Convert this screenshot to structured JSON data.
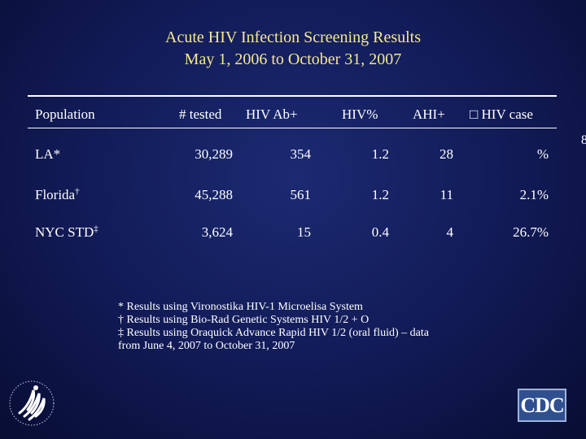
{
  "title": {
    "line1": "Acute HIV Infection Screening Results",
    "line2": "May 1, 2006 to October 31, 2007"
  },
  "table": {
    "headers": {
      "population": "Population",
      "tested": "# tested",
      "hiv_ab": "HIV Ab+",
      "hiv_pct": "HIV%",
      "ahi": "AHI+",
      "hiv_case": "□ HIV case"
    },
    "rows": [
      {
        "population": "LA*",
        "marker": "",
        "tested": "30,289",
        "hiv_ab": "354",
        "hiv_pct": "1.2",
        "ahi": "28",
        "hiv_case": "%"
      },
      {
        "population": "Florida",
        "marker": "†",
        "tested": "45,288",
        "hiv_ab": "561",
        "hiv_pct": "1.2",
        "ahi": "11",
        "hiv_case": "2.1%"
      },
      {
        "population": "NYC STD",
        "marker": "‡",
        "tested": "3,624",
        "hiv_ab": "15",
        "hiv_pct": "0.4",
        "ahi": "4",
        "hiv_case": "26.7%"
      }
    ]
  },
  "footnotes": [
    "* Results using Vironostika HIV-1 Microelisa System",
    "† Results using Bio-Rad Genetic Systems HIV 1/2 + O",
    "‡ Results using Oraquick Advance Rapid HIV 1/2 (oral fluid) – data",
    "from June 4, 2007 to October 31, 2007"
  ],
  "edge_mark": "8",
  "logos": {
    "hhs": "hhs-eagle-logo",
    "cdc_text": "CDC"
  },
  "colors": {
    "background": "#111a55",
    "title": "#f5e88c",
    "text": "#ffffff"
  }
}
